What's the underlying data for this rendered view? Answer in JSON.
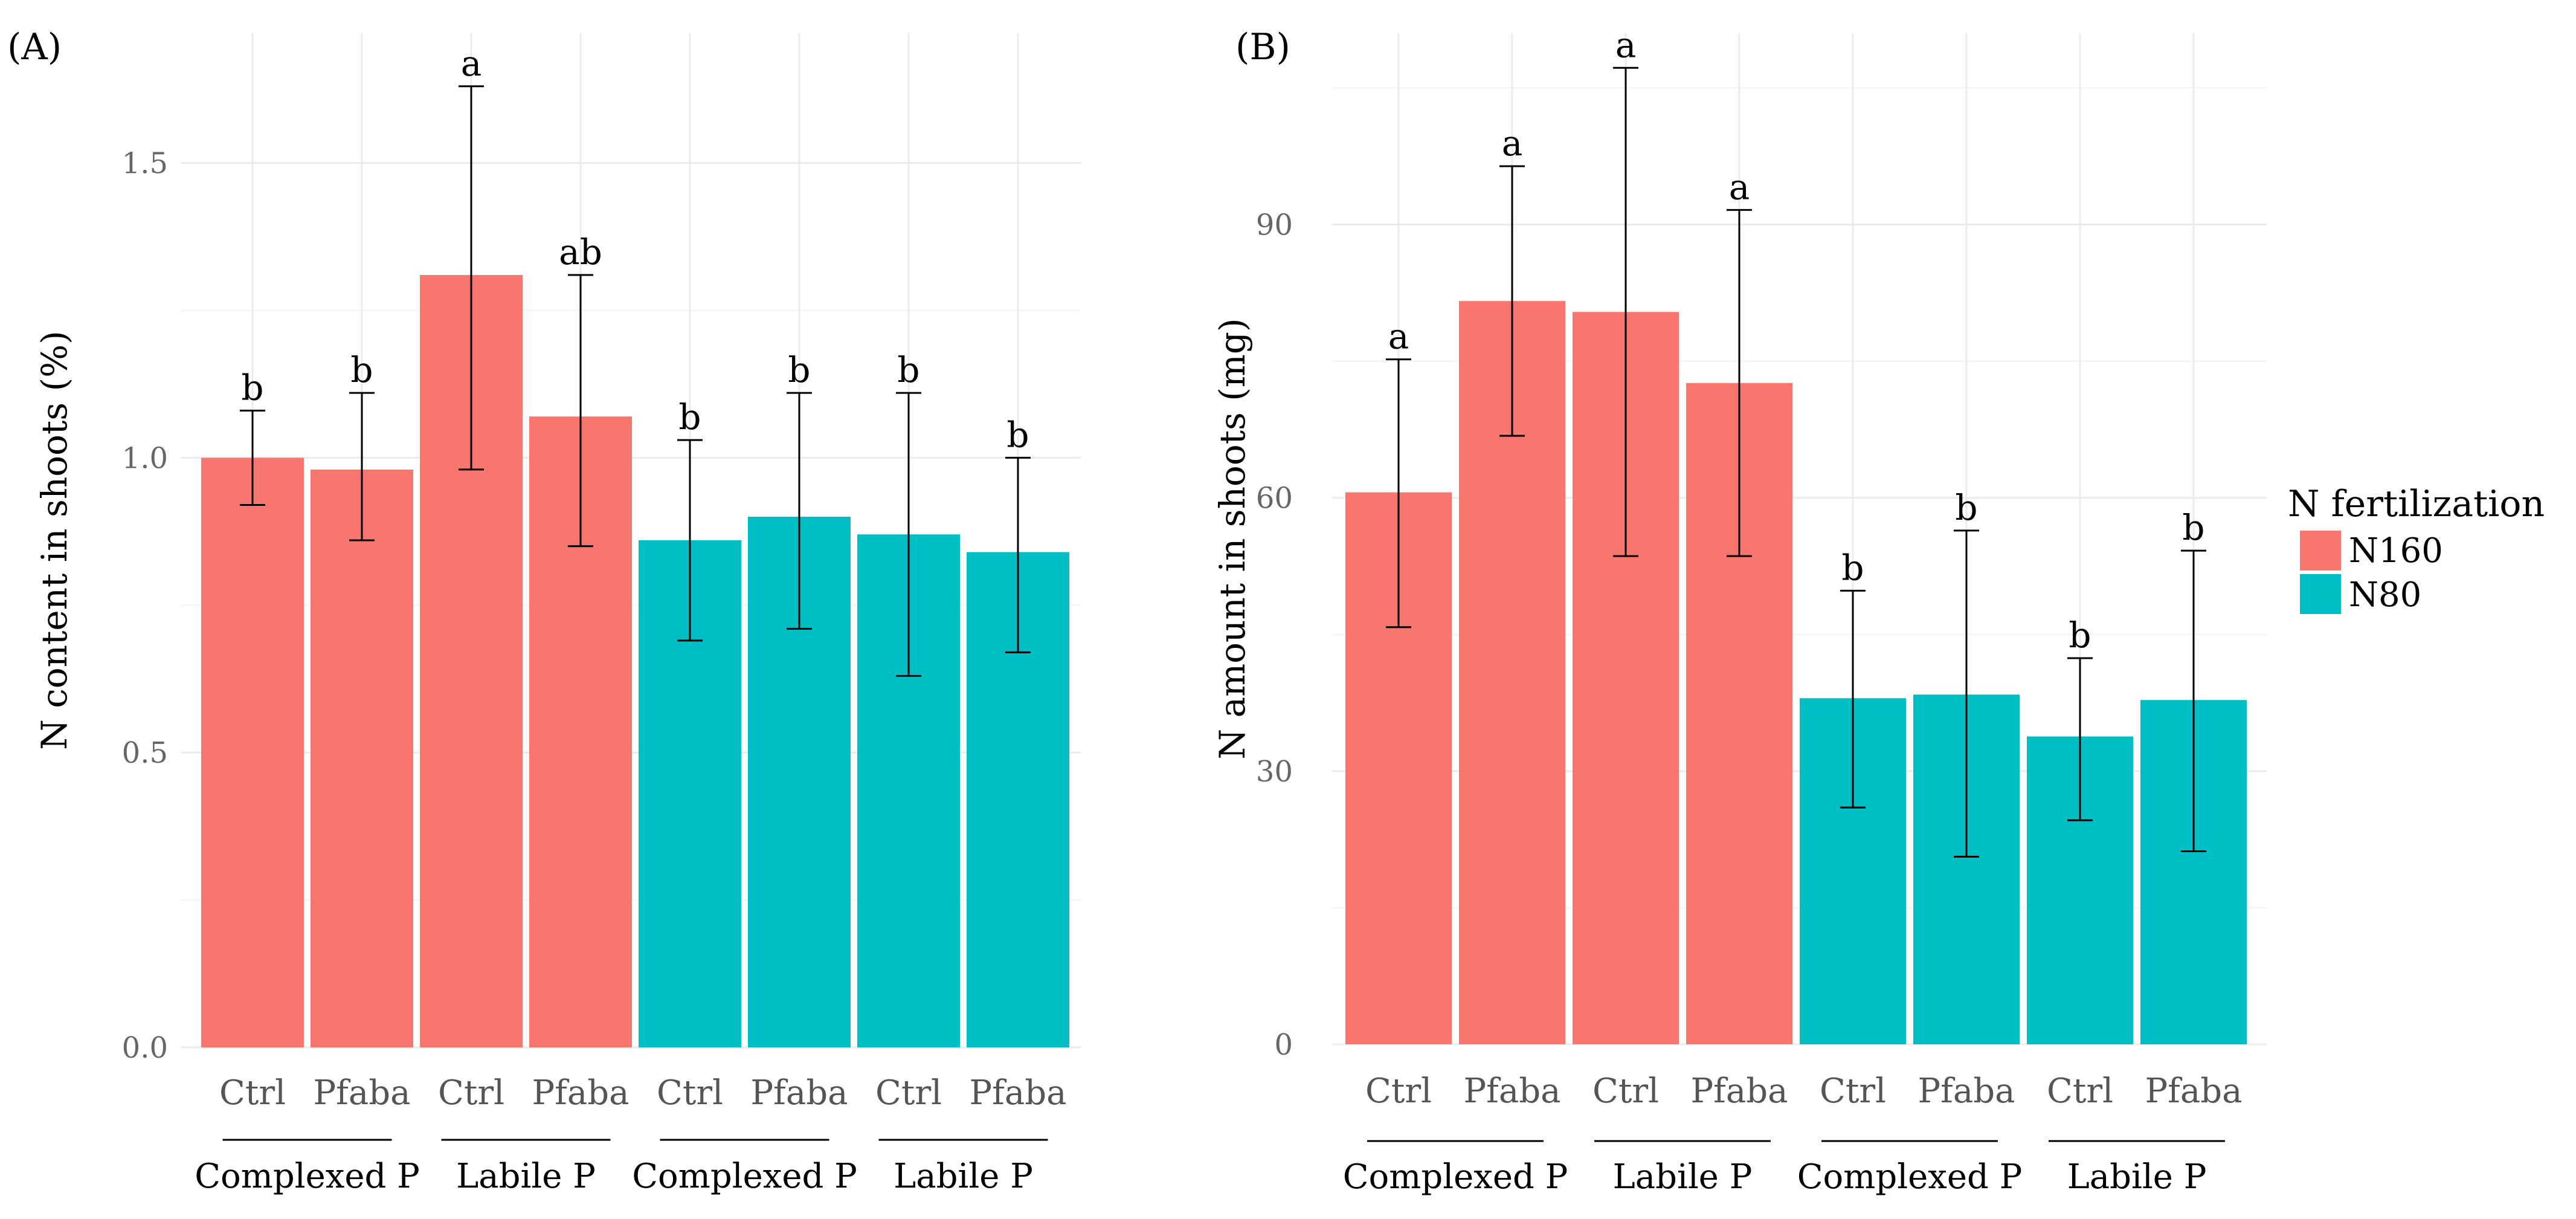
{
  "legend": {
    "title": "N fertilization",
    "items": [
      {
        "label": "N160",
        "color": "#F8766D"
      },
      {
        "label": "N80",
        "color": "#00BFC4"
      }
    ]
  },
  "chart_data": [
    {
      "type": "bar",
      "panel_label": "(A)",
      "ylabel": "N content in shoots (%)",
      "ylim": [
        0,
        1.72
      ],
      "yticks": [
        0.0,
        0.5,
        1.0,
        1.5
      ],
      "ytick_labels": [
        "0.0",
        "0.5",
        "1.0",
        "1.5"
      ],
      "minor_ticks": [
        0.25,
        0.75,
        1.25
      ],
      "categories": [
        "Ctrl",
        "Pfaba",
        "Ctrl",
        "Pfaba",
        "Ctrl",
        "Pfaba",
        "Ctrl",
        "Pfaba"
      ],
      "groups": [
        "Complexed  P",
        "Labile P",
        "Complexed  P",
        "Labile P"
      ],
      "series": [
        {
          "name": "N160",
          "color": "#F8766D",
          "indices": [
            0,
            1,
            2,
            3
          ]
        },
        {
          "name": "N80",
          "color": "#00BFC4",
          "indices": [
            4,
            5,
            6,
            7
          ]
        }
      ],
      "values": [
        1.0,
        0.98,
        1.31,
        1.07,
        0.86,
        0.9,
        0.87,
        0.84
      ],
      "err_low": [
        0.92,
        0.86,
        0.98,
        0.85,
        0.69,
        0.71,
        0.63,
        0.67
      ],
      "err_high": [
        1.08,
        1.11,
        1.63,
        1.31,
        1.03,
        1.11,
        1.11,
        1.0
      ],
      "letters": [
        "b",
        "b",
        "a",
        "ab",
        "b",
        "b",
        "b",
        "b"
      ]
    },
    {
      "type": "bar",
      "panel_label": "(B)",
      "ylabel": "N amount in shoots (mg)",
      "ylim": [
        0,
        111
      ],
      "yticks": [
        0,
        30,
        60,
        90
      ],
      "ytick_labels": [
        "0",
        "30",
        "60",
        "90"
      ],
      "minor_ticks": [
        15,
        45,
        75,
        105
      ],
      "categories": [
        "Ctrl",
        "Pfaba",
        "Ctrl",
        "Pfaba",
        "Ctrl",
        "Pfaba",
        "Ctrl",
        "Pfaba"
      ],
      "groups": [
        "Complexed  P",
        "Labile P",
        "Complexed  P",
        "Labile P"
      ],
      "series": [
        {
          "name": "N160",
          "color": "#F8766D",
          "indices": [
            0,
            1,
            2,
            3
          ]
        },
        {
          "name": "N80",
          "color": "#00BFC4",
          "indices": [
            4,
            5,
            6,
            7
          ]
        }
      ],
      "values": [
        60.6,
        81.6,
        80.4,
        72.6,
        38.0,
        38.4,
        33.8,
        37.8
      ],
      "err_low": [
        45.8,
        66.8,
        53.6,
        53.6,
        26.0,
        20.6,
        24.6,
        21.2
      ],
      "err_high": [
        75.2,
        96.4,
        107.2,
        91.6,
        49.8,
        56.4,
        42.4,
        54.2
      ],
      "letters": [
        "a",
        "a",
        "a",
        "a",
        "b",
        "b",
        "b",
        "b"
      ]
    }
  ]
}
